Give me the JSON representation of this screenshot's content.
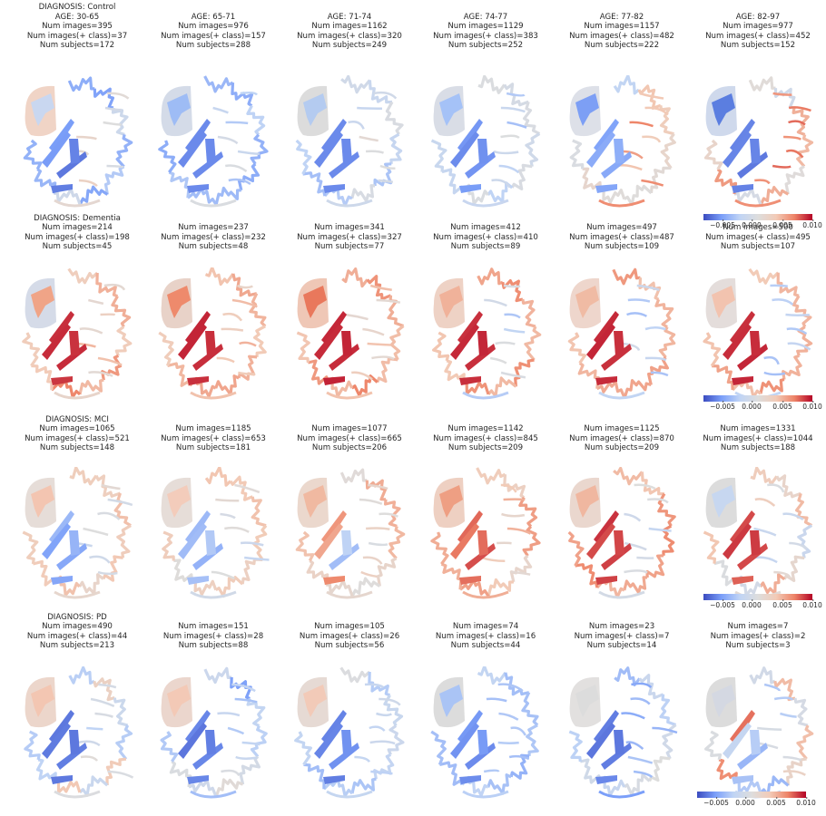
{
  "colormap": {
    "name": "coolwarm",
    "min_color": "#3b4cc0",
    "mid_color": "#dddddd",
    "max_color": "#b40426"
  },
  "colorbar_ticks": [
    "−0.005",
    "0.000",
    "0.005",
    "0.010"
  ],
  "rows": [
    {
      "diagnosis_label": "DIAGNOSIS: Control",
      "cells": [
        {
          "lines": [
            "DIAGNOSIS: Control",
            "AGE: 30-65",
            "Num images=395",
            "Num images(+ class)=37",
            "Num subjects=172"
          ],
          "scheme": {
            "ventricle": "#c9d7f0",
            "bg": "#f0d4c6",
            "edge": [
              0.15,
              0.45
            ],
            "mid": [
              0.2,
              0.1
            ],
            "inner": [
              0.45,
              0.6
            ]
          }
        },
        {
          "lines": [
            "AGE: 65-71",
            "Num images=976",
            "Num images(+ class)=157",
            "Num subjects=288"
          ],
          "scheme": {
            "ventricle": "#9ebcf5",
            "bg": "#d4dbe8",
            "edge": [
              0.15,
              0.4
            ],
            "mid": [
              0.15,
              0.15
            ],
            "inner": [
              0.3,
              0.5
            ]
          }
        },
        {
          "lines": [
            "AGE: 71-74",
            "Num images=1162",
            "Num images(+ class)=320",
            "Num subjects=249"
          ],
          "scheme": {
            "ventricle": "#b4cbf0",
            "bg": "#dcdcdc",
            "edge": [
              0.3,
              0.5
            ],
            "mid": [
              0.15,
              0.15
            ],
            "inner": [
              0.4,
              0.55
            ]
          }
        },
        {
          "lines": [
            "AGE: 74-77",
            "Num images=1129",
            "Num images(+ class)=383",
            "Num subjects=252"
          ],
          "scheme": {
            "ventricle": "#a5c2f7",
            "bg": "#d9dde6",
            "edge": [
              0.35,
              0.5
            ],
            "mid": [
              0.15,
              0.2
            ],
            "inner": [
              0.3,
              0.5
            ]
          }
        },
        {
          "lines": [
            "AGE: 77-82",
            "Num images=1157",
            "Num images(+ class)=482",
            "Num subjects=222"
          ],
          "scheme": {
            "ventricle": "#7d9ff5",
            "bg": "#dde0e8",
            "edge": [
              0.35,
              0.65
            ],
            "mid": [
              0.2,
              0.3
            ],
            "inner": [
              0.6,
              0.8
            ]
          }
        },
        {
          "lines": [
            "AGE: 82-97",
            "Num images=977",
            "Num images(+ class)=452",
            "Num subjects=152"
          ],
          "scheme": {
            "ventricle": "#5b7ee0",
            "bg": "#cfd9ec",
            "edge": [
              0.4,
              0.75
            ],
            "mid": [
              0.1,
              0.15
            ],
            "inner": [
              0.75,
              0.85
            ]
          }
        }
      ]
    },
    {
      "diagnosis_label": "DIAGNOSIS: Dementia",
      "cells": [
        {
          "lines": [
            "DIAGNOSIS: Dementia",
            "Num images=214",
            "Num images(+ class)=198",
            "Num subjects=45"
          ],
          "scheme": {
            "ventricle": "#f0a487",
            "bg": "#d5dbe8",
            "edge": [
              0.6,
              0.8
            ],
            "mid": [
              0.92,
              0.95
            ],
            "inner": [
              0.5,
              0.7
            ]
          }
        },
        {
          "lines": [
            "Num images=237",
            "Num images(+ class)=232",
            "Num subjects=48"
          ],
          "scheme": {
            "ventricle": "#ee8a6c",
            "bg": "#e8d2c8",
            "edge": [
              0.6,
              0.78
            ],
            "mid": [
              0.92,
              0.95
            ],
            "inner": [
              0.55,
              0.7
            ]
          }
        },
        {
          "lines": [
            "Num images=341",
            "Num images(+ class)=327",
            "Num subjects=77"
          ],
          "scheme": {
            "ventricle": "#e9785c",
            "bg": "#efc7b6",
            "edge": [
              0.62,
              0.8
            ],
            "mid": [
              0.93,
              0.96
            ],
            "inner": [
              0.5,
              0.65
            ]
          }
        },
        {
          "lines": [
            "Num images=412",
            "Num images(+ class)=410",
            "Num subjects=89"
          ],
          "scheme": {
            "ventricle": "#f0b29a",
            "bg": "#eed2c5",
            "edge": [
              0.62,
              0.78
            ],
            "mid": [
              0.93,
              0.95
            ],
            "inner": [
              0.3,
              0.5
            ]
          }
        },
        {
          "lines": [
            "Num images=497",
            "Num images(+ class)=487",
            "Num subjects=109"
          ],
          "scheme": {
            "ventricle": "#f0bba4",
            "bg": "#eed6cc",
            "edge": [
              0.62,
              0.78
            ],
            "mid": [
              0.93,
              0.95
            ],
            "inner": [
              0.3,
              0.45
            ]
          }
        },
        {
          "lines": [
            "Num images=500",
            "Num images(+ class)=495",
            "Num subjects=107"
          ],
          "scheme": {
            "ventricle": "#f2c3af",
            "bg": "#e4dddb",
            "edge": [
              0.62,
              0.78
            ],
            "mid": [
              0.93,
              0.95
            ],
            "inner": [
              0.25,
              0.4
            ]
          }
        }
      ]
    },
    {
      "diagnosis_label": "DIAGNOSIS: MCI",
      "cells": [
        {
          "lines": [
            "DIAGNOSIS: MCI",
            "Num images=1065",
            "Num images(+ class)=521",
            "Num subjects=148"
          ],
          "scheme": {
            "ventricle": "#f3c5b1",
            "bg": "#e6ddd8",
            "edge": [
              0.5,
              0.65
            ],
            "mid": [
              0.2,
              0.3
            ],
            "inner": [
              0.4,
              0.55
            ]
          }
        },
        {
          "lines": [
            "Num images=1185",
            "Num images(+ class)=653",
            "Num subjects=181"
          ],
          "scheme": {
            "ventricle": "#f3ccbb",
            "bg": "#e6ddd8",
            "edge": [
              0.5,
              0.65
            ],
            "mid": [
              0.25,
              0.35
            ],
            "inner": [
              0.4,
              0.55
            ]
          }
        },
        {
          "lines": [
            "Num images=1077",
            "Num images(+ class)=665",
            "Num subjects=206"
          ],
          "scheme": {
            "ventricle": "#f0b9a1",
            "bg": "#ebd8cd",
            "edge": [
              0.5,
              0.7
            ],
            "mid": [
              0.3,
              0.8
            ],
            "inner": [
              0.45,
              0.6
            ]
          }
        },
        {
          "lines": [
            "Num images=1142",
            "Num images(+ class)=845",
            "Num subjects=209"
          ],
          "scheme": {
            "ventricle": "#ee9f83",
            "bg": "#eed0c2",
            "edge": [
              0.55,
              0.75
            ],
            "mid": [
              0.8,
              0.9
            ],
            "inner": [
              0.5,
              0.7
            ]
          }
        },
        {
          "lines": [
            "Num images=1125",
            "Num images(+ class)=870",
            "Num subjects=209"
          ],
          "scheme": {
            "ventricle": "#f0b7a0",
            "bg": "#ead7ce",
            "edge": [
              0.55,
              0.78
            ],
            "mid": [
              0.85,
              0.93
            ],
            "inner": [
              0.4,
              0.6
            ]
          }
        },
        {
          "lines": [
            "Num images=1331",
            "Num images(+ class)=1044",
            "Num subjects=188"
          ],
          "scheme": {
            "ventricle": "#c7d7f0",
            "bg": "#dcdcdc",
            "edge": [
              0.4,
              0.7
            ],
            "mid": [
              0.85,
              0.93
            ],
            "inner": [
              0.4,
              0.6
            ]
          }
        }
      ]
    },
    {
      "diagnosis_label": "DIAGNOSIS: PD",
      "cells": [
        {
          "lines": [
            "DIAGNOSIS: PD",
            "Num images=490",
            "Num images(+ class)=44",
            "Num subjects=213"
          ],
          "scheme": {
            "ventricle": "#f3c6b2",
            "bg": "#ecd6cb",
            "edge": [
              0.2,
              0.65
            ],
            "mid": [
              0.1,
              0.12
            ],
            "inner": [
              0.35,
              0.55
            ]
          }
        },
        {
          "lines": [
            "Num images=151",
            "Num images(+ class)=28",
            "Num subjects=88"
          ],
          "scheme": {
            "ventricle": "#f3c9b6",
            "bg": "#ebd6cd",
            "edge": [
              0.2,
              0.6
            ],
            "mid": [
              0.1,
              0.15
            ],
            "inner": [
              0.3,
              0.5
            ]
          }
        },
        {
          "lines": [
            "Num images=105",
            "Num images(+ class)=26",
            "Num subjects=56"
          ],
          "scheme": {
            "ventricle": "#f2cab8",
            "bg": "#e6dad4",
            "edge": [
              0.3,
              0.55
            ],
            "mid": [
              0.1,
              0.2
            ],
            "inner": [
              0.35,
              0.5
            ]
          }
        },
        {
          "lines": [
            "Num images=74",
            "Num images(+ class)=16",
            "Num subjects=44"
          ],
          "scheme": {
            "ventricle": "#aac4f5",
            "bg": "#dcdcdc",
            "edge": [
              0.25,
              0.4
            ],
            "mid": [
              0.1,
              0.2
            ],
            "inner": [
              0.3,
              0.4
            ]
          }
        },
        {
          "lines": [
            "Num images=23",
            "Num images(+ class)=7",
            "Num subjects=14"
          ],
          "scheme": {
            "ventricle": "#dcdcdc",
            "bg": "#e2e0df",
            "edge": [
              0.25,
              0.55
            ],
            "mid": [
              0.1,
              0.15
            ],
            "inner": [
              0.2,
              0.35
            ]
          }
        },
        {
          "lines": [
            "Num images=7",
            "Num images(+ class)=2",
            "Num subjects=3"
          ],
          "scheme": {
            "ventricle": "#d4d8e2",
            "bg": "#dcdcdc",
            "edge": [
              0.25,
              0.8
            ],
            "mid": [
              0.1,
              0.9
            ],
            "inner": [
              0.3,
              0.6
            ]
          }
        }
      ]
    }
  ]
}
